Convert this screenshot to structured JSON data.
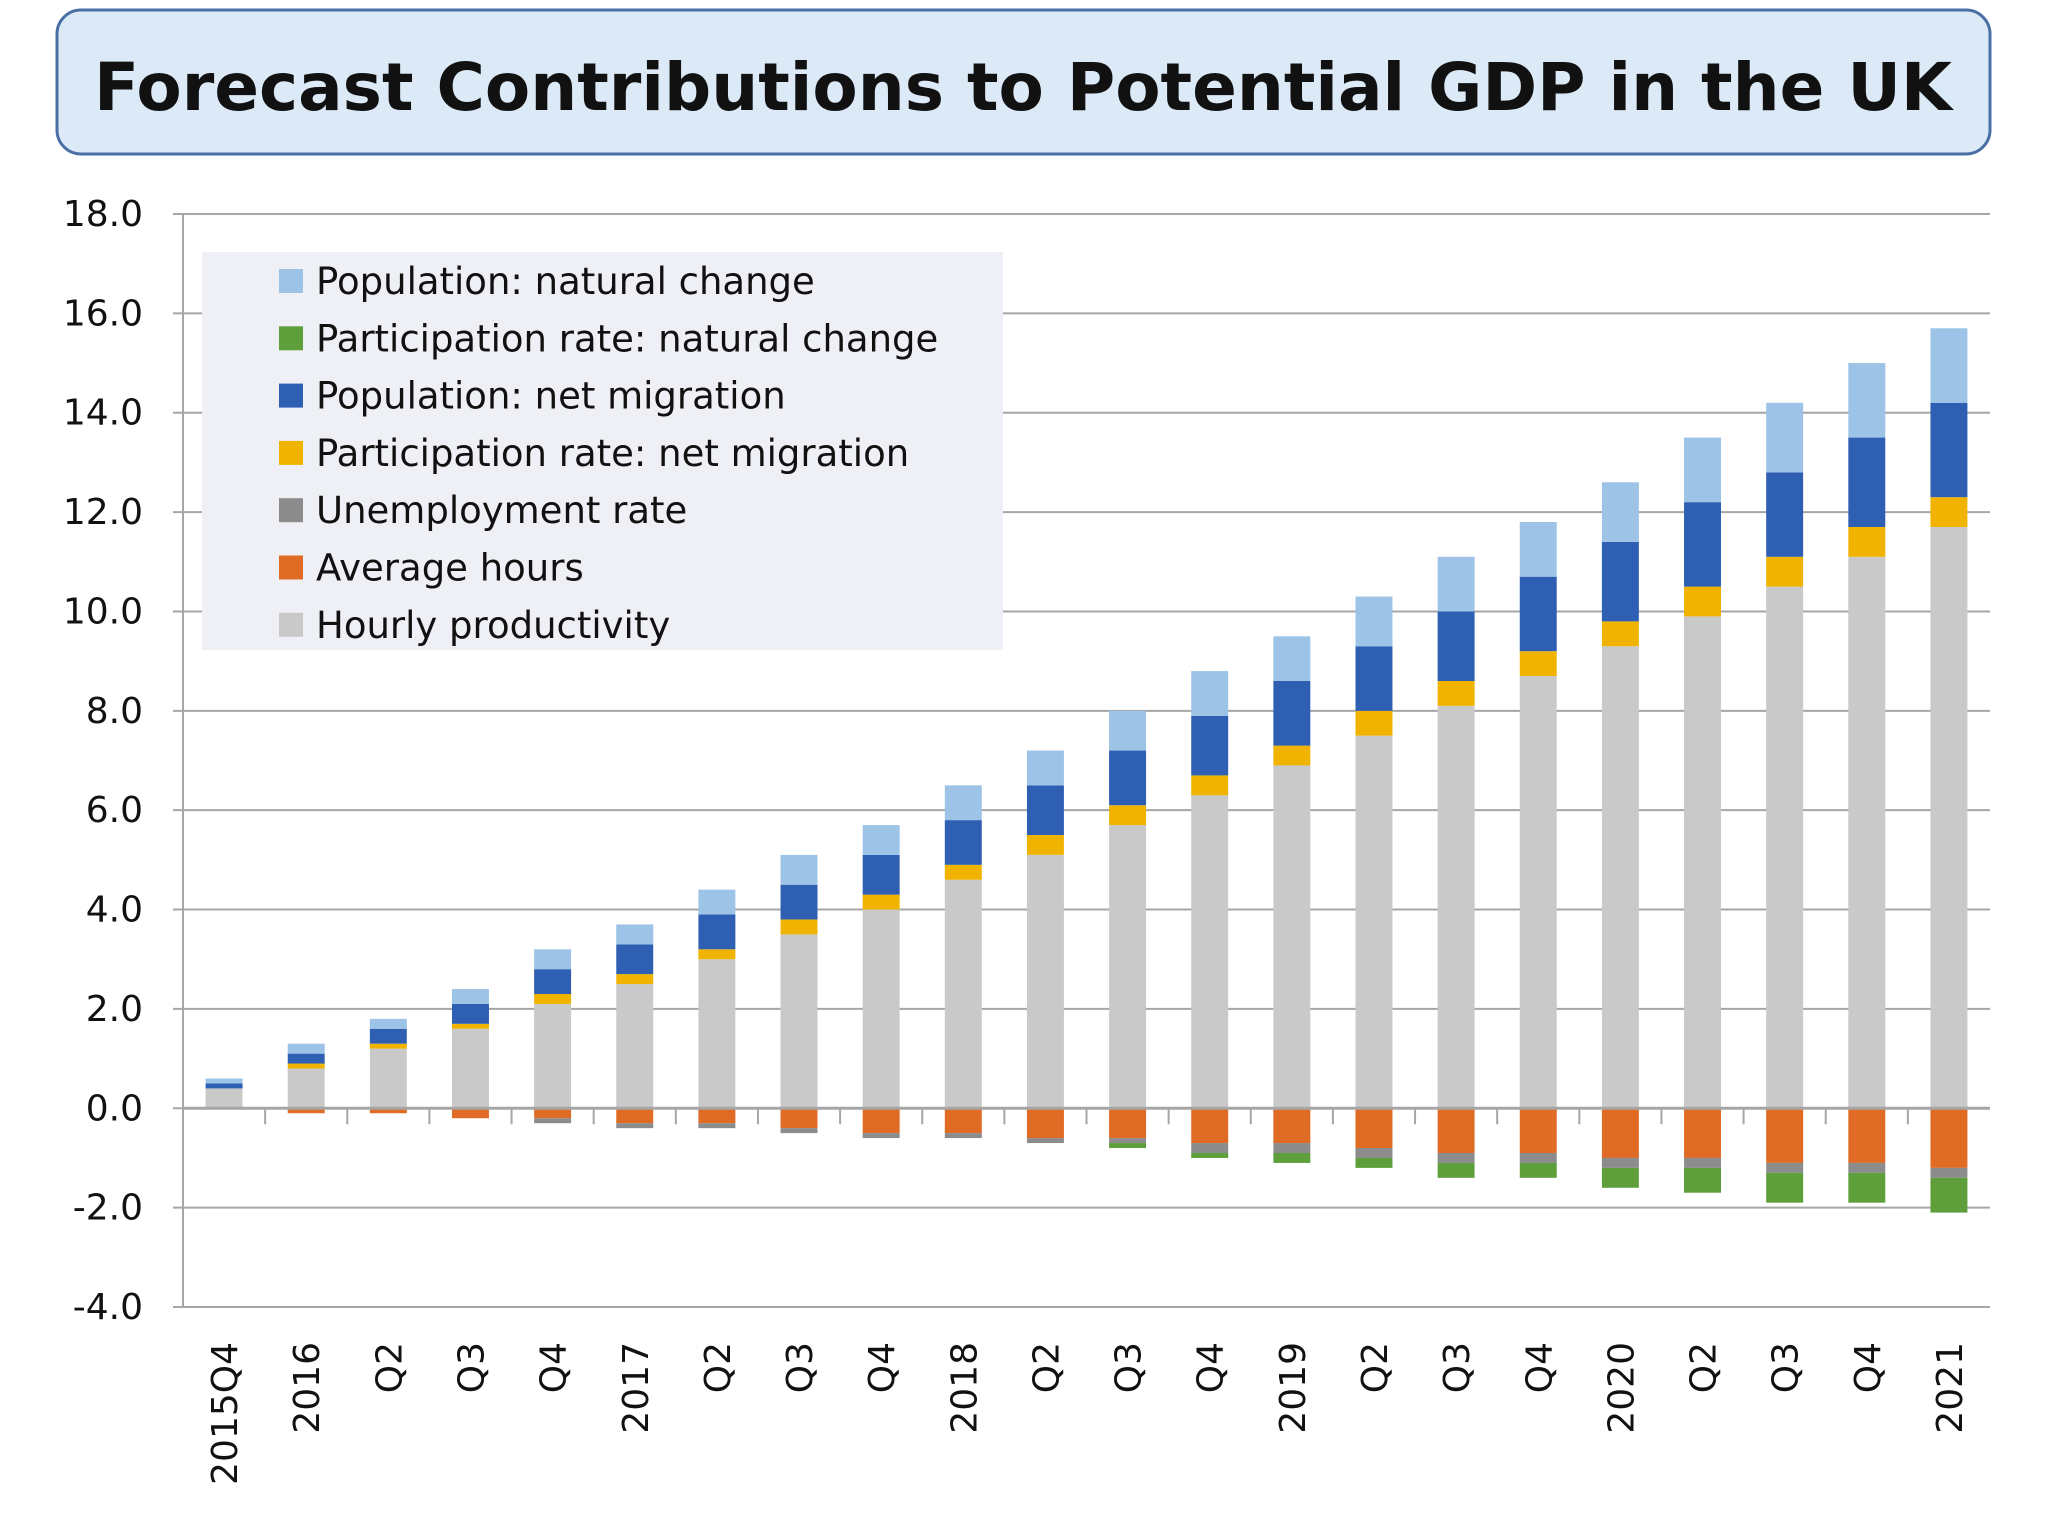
{
  "chart_data": {
    "type": "bar",
    "stacked": true,
    "title": "Forecast Contributions to Potential GDP in the UK",
    "xlabel": "",
    "ylabel": "",
    "ylim": [
      -4.0,
      18.0
    ],
    "yticks": [
      "18.0",
      "16.0",
      "14.0",
      "12.0",
      "10.0",
      "8.0",
      "6.0",
      "4.0",
      "2.0",
      "0.0",
      "-2.0",
      "-4.0"
    ],
    "grid": true,
    "legend_position": "top-left",
    "categories": [
      "2015Q4",
      "2016",
      "Q2",
      "Q3",
      "Q4",
      "2017",
      "Q2",
      "Q3",
      "Q4",
      "2018",
      "Q2",
      "Q3",
      "Q4",
      "2019",
      "Q2",
      "Q3",
      "Q4",
      "2020",
      "Q2",
      "Q3",
      "Q4",
      "2021"
    ],
    "series": [
      {
        "name": "Population: natural change",
        "color": "#9dc3e6",
        "values": [
          0.1,
          0.2,
          0.2,
          0.3,
          0.4,
          0.4,
          0.5,
          0.6,
          0.6,
          0.7,
          0.7,
          0.8,
          0.9,
          0.9,
          1.0,
          1.1,
          1.1,
          1.2,
          1.3,
          1.4,
          1.5,
          1.5
        ]
      },
      {
        "name": "Participation rate: natural change",
        "color": "#5e9f3c",
        "values": [
          0,
          0,
          0,
          0,
          0,
          0,
          0,
          0,
          0,
          0,
          0,
          -0.1,
          -0.1,
          -0.2,
          -0.2,
          -0.3,
          -0.3,
          -0.4,
          -0.5,
          -0.6,
          -0.6,
          -0.7
        ]
      },
      {
        "name": "Population: net migration",
        "color": "#2f5fb3",
        "values": [
          0.1,
          0.2,
          0.3,
          0.4,
          0.5,
          0.6,
          0.7,
          0.7,
          0.8,
          0.9,
          1.0,
          1.1,
          1.2,
          1.3,
          1.3,
          1.4,
          1.5,
          1.6,
          1.7,
          1.7,
          1.8,
          1.9
        ]
      },
      {
        "name": "Participation rate: net migration",
        "color": "#f0b400",
        "values": [
          0.0,
          0.1,
          0.1,
          0.1,
          0.2,
          0.2,
          0.2,
          0.3,
          0.3,
          0.3,
          0.4,
          0.4,
          0.4,
          0.4,
          0.5,
          0.5,
          0.5,
          0.5,
          0.6,
          0.6,
          0.6,
          0.6
        ]
      },
      {
        "name": "Unemployment rate",
        "color": "#8c8c8c",
        "values": [
          0,
          0,
          0,
          0,
          -0.1,
          -0.1,
          -0.1,
          -0.1,
          -0.1,
          -0.1,
          -0.1,
          -0.1,
          -0.2,
          -0.2,
          -0.2,
          -0.2,
          -0.2,
          -0.2,
          -0.2,
          -0.2,
          -0.2,
          -0.2
        ]
      },
      {
        "name": "Average hours",
        "color": "#e06b25",
        "values": [
          0,
          -0.1,
          -0.1,
          -0.2,
          -0.2,
          -0.3,
          -0.3,
          -0.4,
          -0.5,
          -0.5,
          -0.6,
          -0.6,
          -0.7,
          -0.7,
          -0.8,
          -0.9,
          -0.9,
          -1.0,
          -1.0,
          -1.1,
          -1.1,
          -1.2
        ]
      },
      {
        "name": "Hourly productivity",
        "color": "#c9c9c9",
        "values": [
          0.4,
          0.8,
          1.2,
          1.6,
          2.1,
          2.5,
          3.0,
          3.5,
          4.0,
          4.6,
          5.1,
          5.7,
          6.3,
          6.9,
          7.5,
          8.1,
          8.7,
          9.3,
          9.9,
          10.5,
          11.1,
          11.7
        ]
      }
    ]
  }
}
